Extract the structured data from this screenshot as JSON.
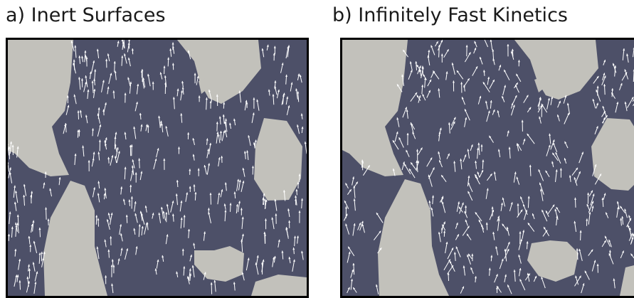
{
  "panels": [
    {
      "label": "a) Inert Surfaces"
    },
    {
      "label": "b) Infinitely Fast Kinetics"
    }
  ],
  "colors": {
    "pore_fluid": "#4d5068",
    "solid_grain": "#c2c1bb",
    "velocity_arrow": "#ffffff",
    "frame": "#000000"
  }
}
